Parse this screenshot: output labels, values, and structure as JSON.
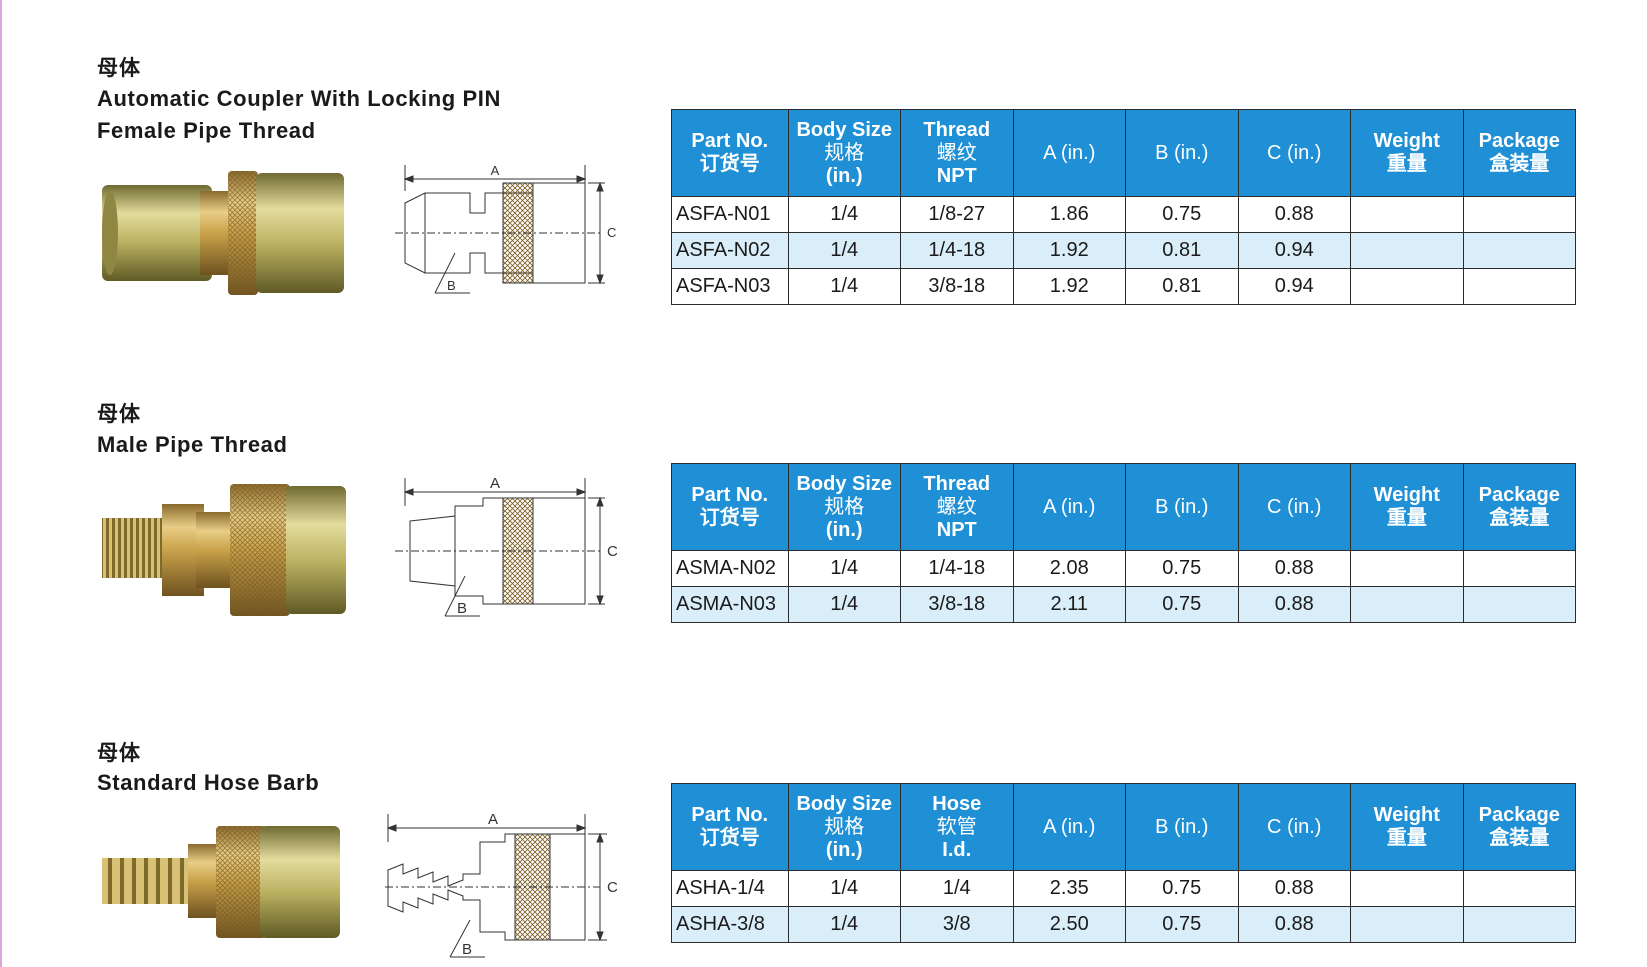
{
  "sections": [
    {
      "cn_title": "母体",
      "en_title_lines": [
        "Automatic Coupler With Locking PIN",
        "Female Pipe Thread"
      ],
      "headers": {
        "part": [
          "Part No.",
          "订货号"
        ],
        "body": [
          "Body Size",
          "规格",
          "(in.)"
        ],
        "third": [
          "Thread",
          "螺纹",
          "NPT"
        ],
        "a": "A (in.)",
        "b": "B (in.)",
        "c": "C (in.)",
        "weight": [
          "Weight",
          "重量"
        ],
        "package": [
          "Package",
          "盒装量"
        ]
      },
      "rows": [
        {
          "part": "ASFA-N01",
          "body": "1/4",
          "third": "1/8-27",
          "a": "1.86",
          "b": "0.75",
          "c": "0.88",
          "weight": "",
          "package": ""
        },
        {
          "part": "ASFA-N02",
          "body": "1/4",
          "third": "1/4-18",
          "a": "1.92",
          "b": "0.81",
          "c": "0.94",
          "weight": "",
          "package": ""
        },
        {
          "part": "ASFA-N03",
          "body": "1/4",
          "third": "3/8-18",
          "a": "1.92",
          "b": "0.81",
          "c": "0.94",
          "weight": "",
          "package": ""
        }
      ],
      "drawing_labels": {
        "a": "A",
        "b": "B",
        "c": "C"
      }
    },
    {
      "cn_title": "母体",
      "en_title_lines": [
        "Male Pipe Thread"
      ],
      "headers": {
        "part": [
          "Part No.",
          "订货号"
        ],
        "body": [
          "Body Size",
          "规格",
          "(in.)"
        ],
        "third": [
          "Thread",
          "螺纹",
          "NPT"
        ],
        "a": "A (in.)",
        "b": "B (in.)",
        "c": "C (in.)",
        "weight": [
          "Weight",
          "重量"
        ],
        "package": [
          "Package",
          "盒装量"
        ]
      },
      "rows": [
        {
          "part": "ASMA-N02",
          "body": "1/4",
          "third": "1/4-18",
          "a": "2.08",
          "b": "0.75",
          "c": "0.88",
          "weight": "",
          "package": ""
        },
        {
          "part": "ASMA-N03",
          "body": "1/4",
          "third": "3/8-18",
          "a": "2.11",
          "b": "0.75",
          "c": "0.88",
          "weight": "",
          "package": ""
        }
      ],
      "drawing_labels": {
        "a": "A",
        "b": "B",
        "c": "C"
      }
    },
    {
      "cn_title": "母体",
      "en_title_lines": [
        "Standard Hose Barb"
      ],
      "headers": {
        "part": [
          "Part No.",
          "订货号"
        ],
        "body": [
          "Body Size",
          "规格",
          "(in.)"
        ],
        "third": [
          "Hose",
          "软管",
          "I.d."
        ],
        "a": "A (in.)",
        "b": "B (in.)",
        "c": "C (in.)",
        "weight": [
          "Weight",
          "重量"
        ],
        "package": [
          "Package",
          "盒装量"
        ]
      },
      "rows": [
        {
          "part": "ASHA-1/4",
          "body": "1/4",
          "third": "1/4",
          "a": "2.35",
          "b": "0.75",
          "c": "0.88",
          "weight": "",
          "package": ""
        },
        {
          "part": "ASHA-3/8",
          "body": "1/4",
          "third": "3/8",
          "a": "2.50",
          "b": "0.75",
          "c": "0.88",
          "weight": "",
          "package": ""
        }
      ],
      "drawing_labels": {
        "a": "A",
        "b": "B",
        "c": "C"
      }
    }
  ],
  "colors": {
    "header_blue": "#1f8fd6",
    "alt_row": "#daeefa",
    "brass": "#c9a24a",
    "zinc": "#b9b060"
  }
}
